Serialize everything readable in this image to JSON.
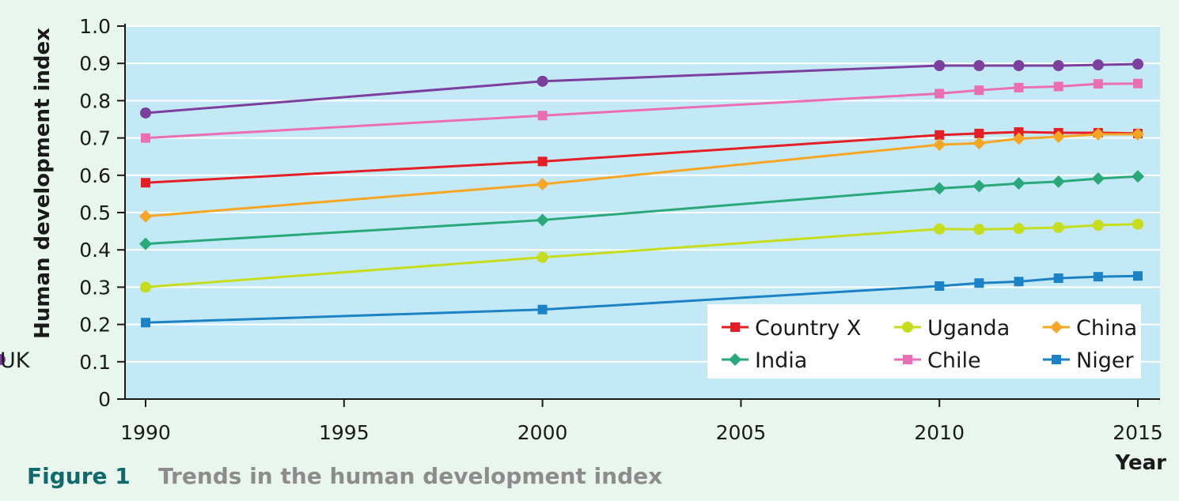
{
  "figure": {
    "number": "Figure 1",
    "caption": "Trends in the human development index"
  },
  "chart_data": {
    "type": "line",
    "title": "",
    "xlabel": "Year",
    "ylabel": "Human development index",
    "xlim": [
      1990,
      2015
    ],
    "ylim": [
      0,
      1.0
    ],
    "xticks": [
      1990,
      1995,
      2000,
      2005,
      2010,
      2015
    ],
    "xtick_labels": [
      "1990",
      "1995",
      "2000",
      "2005",
      "2010",
      "2015"
    ],
    "yticks": [
      0,
      0.1,
      0.2,
      0.3,
      0.4,
      0.5,
      0.6,
      0.7,
      0.8,
      0.9,
      1.0
    ],
    "ytick_labels": [
      "0",
      "0.1",
      "0.2",
      "0.3",
      "0.4",
      "0.5",
      "0.6",
      "0.7",
      "0.8",
      "0.9",
      "1.0"
    ],
    "grid": "horizontal",
    "legend_position": "bottom-right",
    "plot_background": "#c4e9f6",
    "x": [
      1990,
      2000,
      2010,
      2011,
      2012,
      2013,
      2014,
      2015
    ],
    "series": [
      {
        "name": "Country X",
        "color": "#e31e24",
        "marker": "square",
        "values": [
          0.58,
          0.637,
          0.708,
          0.712,
          0.716,
          0.714,
          0.714,
          0.712
        ]
      },
      {
        "name": "Uganda",
        "color": "#c6dd1c",
        "marker": "circle",
        "values": [
          0.3,
          0.38,
          0.456,
          0.455,
          0.457,
          0.46,
          0.466,
          0.469
        ]
      },
      {
        "name": "China",
        "color": "#f6a623",
        "marker": "diamond",
        "values": [
          0.49,
          0.576,
          0.682,
          0.686,
          0.698,
          0.703,
          0.71,
          0.71
        ]
      },
      {
        "name": "India",
        "color": "#29a97a",
        "marker": "diamond",
        "values": [
          0.416,
          0.48,
          0.565,
          0.571,
          0.578,
          0.583,
          0.591,
          0.597
        ]
      },
      {
        "name": "Chile",
        "color": "#ea6eb3",
        "marker": "square",
        "values": [
          0.7,
          0.76,
          0.819,
          0.828,
          0.835,
          0.838,
          0.845,
          0.846
        ]
      },
      {
        "name": "Niger",
        "color": "#1b83c5",
        "marker": "square",
        "values": [
          0.205,
          0.24,
          0.303,
          0.311,
          0.315,
          0.324,
          0.328,
          0.33
        ]
      },
      {
        "name": "UK",
        "color": "#7b3f9d",
        "marker": "circle",
        "values": [
          0.767,
          0.852,
          0.894,
          0.894,
          0.894,
          0.894,
          0.896,
          0.898
        ]
      }
    ]
  }
}
